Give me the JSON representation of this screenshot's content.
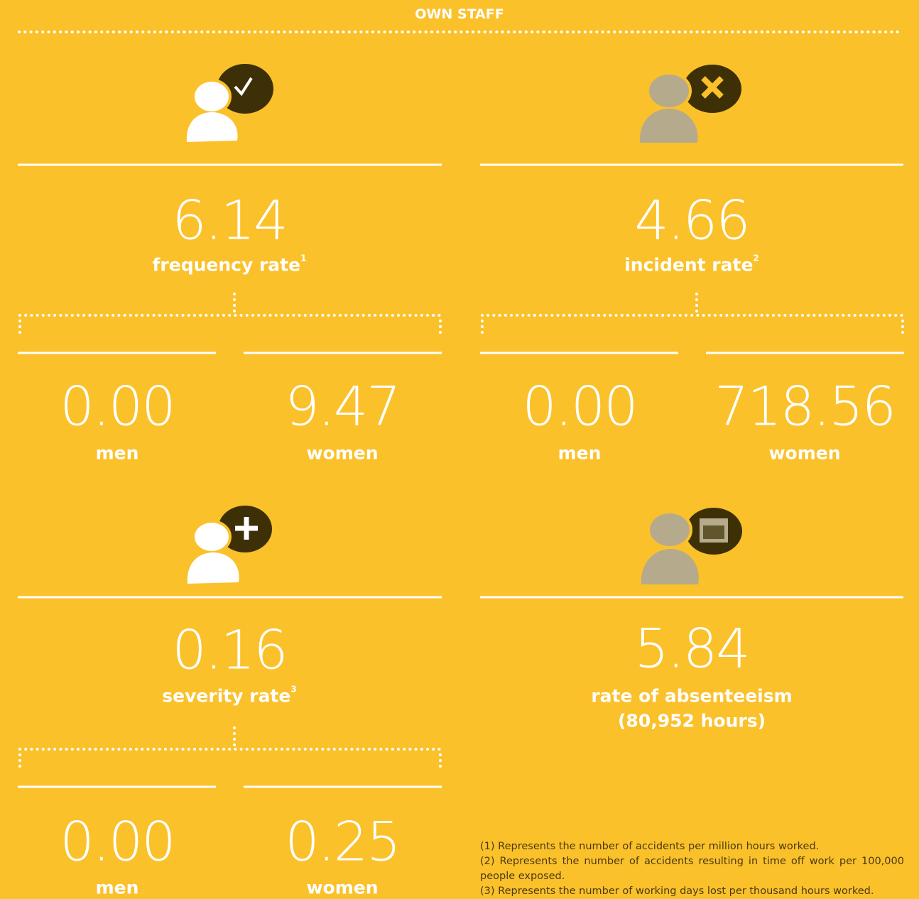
{
  "header": {
    "title": "OWN STAFF"
  },
  "panels": [
    {
      "value": "6.14",
      "label": "frequency rate",
      "note": "1",
      "men": {
        "value": "0.00",
        "label": "men"
      },
      "women": {
        "value": "9.47",
        "label": "women"
      }
    },
    {
      "value": "4.66",
      "label": "incident rate",
      "note": "2",
      "men": {
        "value": "0.00",
        "label": "men"
      },
      "women": {
        "value": "718.56",
        "label": "women"
      }
    },
    {
      "value": "0.16",
      "label": "severity rate",
      "note": "3",
      "men": {
        "value": "0.00",
        "label": "men"
      },
      "women": {
        "value": "0.25",
        "label": "women"
      }
    },
    {
      "value": "5.84",
      "label": "rate of absenteeism",
      "sublabel": "(80,952 hours)"
    }
  ],
  "footnotes": [
    "(1) Represents the number of accidents per million hours worked.",
    "(2) Represents the number of accidents resulting in time off work per 100,000 people exposed.",
    "(3) Represents the number of working days lost per thousand hours worked."
  ]
}
